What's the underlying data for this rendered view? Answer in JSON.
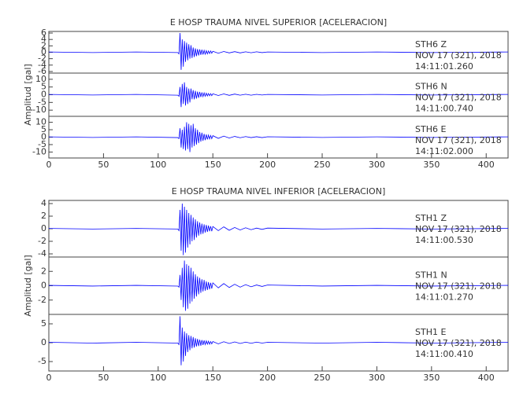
{
  "chart_data": [
    {
      "type": "line",
      "title": "E HOSP TRAUMA NIVEL SUPERIOR [ACELERACION]",
      "ylabel": "Amplitud [gal]",
      "color": "#0000ff",
      "xlim": [
        0,
        420
      ],
      "xticks": [
        0,
        50,
        100,
        150,
        200,
        250,
        300,
        350,
        400
      ],
      "x": [
        0,
        40,
        80,
        118,
        119,
        120,
        121,
        122,
        123,
        124,
        125,
        126,
        127,
        128,
        129,
        130,
        131,
        132,
        133,
        134,
        135,
        136,
        137,
        138,
        139,
        140,
        141,
        142,
        143,
        144,
        145,
        146,
        147,
        148,
        149,
        150,
        155,
        160,
        165,
        170,
        175,
        180,
        185,
        190,
        195,
        200,
        250,
        300,
        350,
        420
      ],
      "panels": [
        {
          "text": [
            "STH6   Z",
            "NOV 17 (321), 2018",
            "14:11:01.260"
          ],
          "ylim": [
            -6.5,
            6.5
          ],
          "yticks": [
            -6,
            -4,
            -2,
            0,
            2,
            4,
            6
          ],
          "values": [
            0.1,
            -0.1,
            0.1,
            -0.1,
            -0.5,
            6,
            -5.5,
            4,
            -4.5,
            3.5,
            -3,
            3,
            -2.5,
            2.5,
            -2,
            2.2,
            -1.8,
            1.5,
            -1.5,
            1.2,
            -1.2,
            1,
            -1,
            0.9,
            -0.8,
            0.8,
            -0.7,
            0.6,
            -0.6,
            0.5,
            -0.5,
            0.4,
            -0.4,
            0.4,
            -0.3,
            0.3,
            -0.3,
            0.25,
            -0.2,
            0.2,
            -0.2,
            0.15,
            -0.15,
            0.15,
            -0.1,
            0.1,
            -0.1,
            0.1,
            -0.1,
            0.1
          ]
        },
        {
          "text": [
            "STH6   N",
            "NOV 17 (321), 2018",
            "14:11:00.740"
          ],
          "ylim": [
            -14,
            14
          ],
          "yticks": [
            -10,
            -5,
            0,
            5,
            10
          ],
          "values": [
            0.2,
            -0.2,
            0.2,
            -0.3,
            -1,
            5,
            -8,
            7,
            -6,
            8,
            -7,
            5,
            -6,
            4,
            -5,
            4,
            -3,
            3,
            -3,
            2.5,
            -2.5,
            2,
            -2,
            1.8,
            -1.5,
            1.5,
            -1.2,
            1.2,
            -1,
            1,
            -0.8,
            0.8,
            -0.7,
            0.7,
            -0.6,
            0.6,
            -0.5,
            0.5,
            -0.4,
            0.4,
            -0.3,
            0.3,
            -0.3,
            0.25,
            -0.2,
            0.2,
            -0.2,
            0.2,
            -0.2,
            0.2
          ]
        },
        {
          "text": [
            "STH6   E",
            "NOV 17 (321), 2018",
            "14:11:02.000"
          ],
          "ylim": [
            -14,
            14
          ],
          "yticks": [
            -10,
            -5,
            0,
            5,
            10
          ],
          "values": [
            0.2,
            -0.2,
            0.2,
            -0.3,
            -1,
            6,
            -7,
            5,
            -8,
            7,
            -9,
            10,
            -8,
            9,
            -10,
            8,
            -7,
            9,
            -6,
            6,
            -5,
            5,
            -4,
            3.5,
            -3,
            3,
            -2.5,
            2.2,
            -2,
            1.8,
            -1.5,
            1.4,
            -1.2,
            1.1,
            -1,
            1,
            -0.8,
            0.7,
            -0.6,
            0.5,
            -0.4,
            0.4,
            -0.3,
            0.3,
            -0.3,
            0.25,
            -0.2,
            0.2,
            -0.2,
            0.2
          ]
        }
      ]
    },
    {
      "type": "line",
      "title": "E HOSP TRAUMA NIVEL INFERIOR [ACELERACION]",
      "ylabel": "Amplitud [gal]",
      "color": "#0000ff",
      "xlim": [
        0,
        420
      ],
      "xticks": [
        0,
        50,
        100,
        150,
        200,
        250,
        300,
        350,
        400
      ],
      "x": [
        0,
        40,
        80,
        118,
        119,
        120,
        121,
        122,
        123,
        124,
        125,
        126,
        127,
        128,
        129,
        130,
        131,
        132,
        133,
        134,
        135,
        136,
        137,
        138,
        139,
        140,
        141,
        142,
        143,
        144,
        145,
        146,
        147,
        148,
        149,
        150,
        155,
        160,
        165,
        170,
        175,
        180,
        185,
        190,
        195,
        200,
        250,
        300,
        350,
        420
      ],
      "panels": [
        {
          "text": [
            "STH1   Z",
            "NOV 17 (321), 2018",
            "14:11:00.530"
          ],
          "ylim": [
            -4.5,
            4.5
          ],
          "yticks": [
            -4,
            -2,
            0,
            2,
            4
          ],
          "values": [
            0.05,
            -0.05,
            0.05,
            -0.05,
            -0.3,
            3,
            -3.5,
            4,
            -4.2,
            3.5,
            -3.8,
            3,
            -3,
            2.5,
            -2.5,
            2.2,
            -2,
            1.8,
            -1.8,
            1.5,
            -1.4,
            1.2,
            -1.1,
            1,
            -0.9,
            0.8,
            -0.8,
            0.7,
            -0.6,
            0.6,
            -0.5,
            0.5,
            -0.4,
            0.4,
            -0.4,
            0.35,
            -0.3,
            0.3,
            -0.25,
            0.2,
            -0.2,
            0.15,
            -0.15,
            0.1,
            -0.1,
            0.1,
            -0.05,
            0.05,
            -0.05,
            0.05
          ]
        },
        {
          "text": [
            "STH1   N",
            "NOV 17 (321), 2018",
            "14:11:01.270"
          ],
          "ylim": [
            -4,
            4
          ],
          "yticks": [
            -2,
            0,
            2
          ],
          "values": [
            0.05,
            -0.05,
            0.05,
            -0.05,
            -0.2,
            1.5,
            -2,
            2.5,
            -3,
            3.5,
            -3.5,
            3,
            -3.2,
            2.8,
            -2.5,
            2.5,
            -2.2,
            2,
            -1.8,
            1.6,
            -1.5,
            1.3,
            -1.2,
            1.1,
            -1,
            0.9,
            -0.8,
            0.8,
            -0.7,
            0.6,
            -0.6,
            0.5,
            -0.5,
            0.4,
            -0.4,
            0.4,
            -0.3,
            0.3,
            -0.25,
            0.2,
            -0.2,
            0.15,
            -0.15,
            0.1,
            -0.1,
            0.1,
            -0.05,
            0.05,
            -0.05,
            0.05
          ]
        },
        {
          "text": [
            "STH1   E",
            "NOV 17 (321), 2018",
            "14:11:00.410"
          ],
          "ylim": [
            -7.5,
            7.5
          ],
          "yticks": [
            -5,
            0,
            5
          ],
          "values": [
            0.1,
            -0.1,
            0.1,
            -0.1,
            -0.5,
            7,
            -6,
            4,
            -5,
            3,
            -3.5,
            2.5,
            -2.5,
            2,
            -2,
            1.8,
            -1.5,
            1.5,
            -1.3,
            1.2,
            -1,
            1,
            -0.9,
            0.8,
            -0.8,
            0.7,
            -0.6,
            0.6,
            -0.5,
            0.5,
            -0.4,
            0.4,
            -0.4,
            0.3,
            -0.3,
            0.3,
            -0.3,
            0.25,
            -0.2,
            0.2,
            -0.2,
            0.15,
            -0.15,
            0.15,
            -0.1,
            0.1,
            -0.1,
            0.1,
            -0.1,
            0.1
          ]
        }
      ]
    }
  ]
}
